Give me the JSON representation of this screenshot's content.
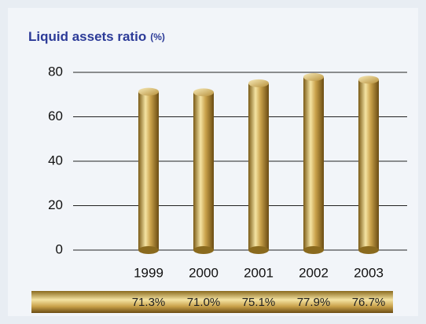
{
  "chart_data": {
    "type": "bar",
    "title": "Liquid assets ratio",
    "unit": "(%)",
    "categories": [
      "1999",
      "2000",
      "2001",
      "2002",
      "2003"
    ],
    "values": [
      71.3,
      71.0,
      75.1,
      77.9,
      76.7
    ],
    "value_labels": [
      "71.3%",
      "71.0%",
      "75.1%",
      "77.9%",
      "76.7%"
    ],
    "color": "#d4b25a",
    "ylim": [
      0,
      80
    ],
    "yticks": [
      0,
      20,
      40,
      60,
      80
    ],
    "grid": true
  }
}
